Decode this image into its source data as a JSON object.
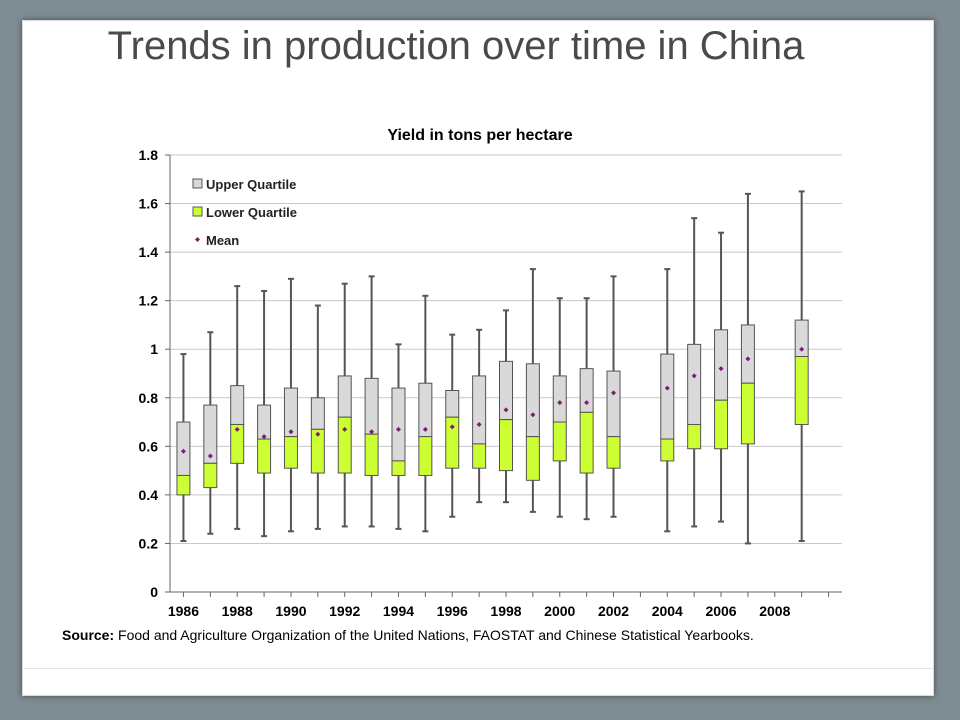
{
  "slide": {
    "title": "Trends in production over time in China",
    "source_label": "Source:",
    "source_text": " Food and Agriculture Organization of the United Nations, FAOSTAT and Chinese Statistical Yearbooks."
  },
  "chart_data": {
    "type": "boxplot",
    "title": "Yield in tons per hectare",
    "xlabel": "",
    "ylabel": "",
    "ylim": [
      0,
      1.8
    ],
    "yticks": [
      0,
      0.2,
      0.4,
      0.6,
      0.8,
      1,
      1.2,
      1.4,
      1.6,
      1.8
    ],
    "xlim": [
      1985.5,
      2010.5
    ],
    "xticks": [
      1986,
      1988,
      1990,
      1992,
      1994,
      1996,
      1998,
      2000,
      2002,
      2004,
      2006,
      2008
    ],
    "grid": true,
    "legend": {
      "position": "top-left",
      "entries": [
        {
          "name": "Upper Quartile",
          "color": "#d9d9d9"
        },
        {
          "name": "Lower Quartile",
          "color": "#ccff33"
        },
        {
          "name": "Mean",
          "color": "#7a1f73"
        }
      ]
    },
    "colors": {
      "upper": "#d9d9d9",
      "lower": "#ccff33",
      "mean": "#7a1f73",
      "grid": "#c8c8c8",
      "whisker": "#555555"
    },
    "boxes": [
      {
        "year": 1986,
        "min": 0.21,
        "q1": 0.4,
        "median": 0.48,
        "q3": 0.7,
        "max": 0.98,
        "mean": 0.58
      },
      {
        "year": 1987,
        "min": 0.24,
        "q1": 0.43,
        "median": 0.53,
        "q3": 0.77,
        "max": 1.07,
        "mean": 0.56
      },
      {
        "year": 1988,
        "min": 0.26,
        "q1": 0.53,
        "median": 0.69,
        "q3": 0.85,
        "max": 1.26,
        "mean": 0.67
      },
      {
        "year": 1989,
        "min": 0.23,
        "q1": 0.49,
        "median": 0.63,
        "q3": 0.77,
        "max": 1.24,
        "mean": 0.64
      },
      {
        "year": 1990,
        "min": 0.25,
        "q1": 0.51,
        "median": 0.64,
        "q3": 0.84,
        "max": 1.29,
        "mean": 0.66
      },
      {
        "year": 1991,
        "min": 0.26,
        "q1": 0.49,
        "median": 0.67,
        "q3": 0.8,
        "max": 1.18,
        "mean": 0.65
      },
      {
        "year": 1992,
        "min": 0.27,
        "q1": 0.49,
        "median": 0.72,
        "q3": 0.89,
        "max": 1.27,
        "mean": 0.67
      },
      {
        "year": 1993,
        "min": 0.27,
        "q1": 0.48,
        "median": 0.65,
        "q3": 0.88,
        "max": 1.3,
        "mean": 0.66
      },
      {
        "year": 1994,
        "min": 0.26,
        "q1": 0.48,
        "median": 0.54,
        "q3": 0.84,
        "max": 1.02,
        "mean": 0.67
      },
      {
        "year": 1995,
        "min": 0.25,
        "q1": 0.48,
        "median": 0.64,
        "q3": 0.86,
        "max": 1.22,
        "mean": 0.67
      },
      {
        "year": 1996,
        "min": 0.31,
        "q1": 0.51,
        "median": 0.72,
        "q3": 0.83,
        "max": 1.06,
        "mean": 0.68
      },
      {
        "year": 1997,
        "min": 0.37,
        "q1": 0.51,
        "median": 0.61,
        "q3": 0.89,
        "max": 1.08,
        "mean": 0.69
      },
      {
        "year": 1998,
        "min": 0.37,
        "q1": 0.5,
        "median": 0.71,
        "q3": 0.95,
        "max": 1.16,
        "mean": 0.75
      },
      {
        "year": 1999,
        "min": 0.33,
        "q1": 0.46,
        "median": 0.64,
        "q3": 0.94,
        "max": 1.33,
        "mean": 0.73
      },
      {
        "year": 2000,
        "min": 0.31,
        "q1": 0.54,
        "median": 0.7,
        "q3": 0.89,
        "max": 1.21,
        "mean": 0.78
      },
      {
        "year": 2001,
        "min": 0.3,
        "q1": 0.49,
        "median": 0.74,
        "q3": 0.92,
        "max": 1.21,
        "mean": 0.78
      },
      {
        "year": 2002,
        "min": 0.31,
        "q1": 0.51,
        "median": 0.64,
        "q3": 0.91,
        "max": 1.3,
        "mean": 0.82
      },
      {
        "year": 2004,
        "min": 0.25,
        "q1": 0.54,
        "median": 0.63,
        "q3": 0.98,
        "max": 1.33,
        "mean": 0.84
      },
      {
        "year": 2005,
        "min": 0.27,
        "q1": 0.59,
        "median": 0.69,
        "q3": 1.02,
        "max": 1.54,
        "mean": 0.89
      },
      {
        "year": 2006,
        "min": 0.29,
        "q1": 0.59,
        "median": 0.79,
        "q3": 1.08,
        "max": 1.48,
        "mean": 0.92
      },
      {
        "year": 2007,
        "min": 0.2,
        "q1": 0.61,
        "median": 0.86,
        "q3": 1.1,
        "max": 1.64,
        "mean": 0.96
      },
      {
        "year": 2009,
        "min": 0.21,
        "q1": 0.69,
        "median": 0.97,
        "q3": 1.12,
        "max": 1.65,
        "mean": 1.0
      }
    ]
  }
}
